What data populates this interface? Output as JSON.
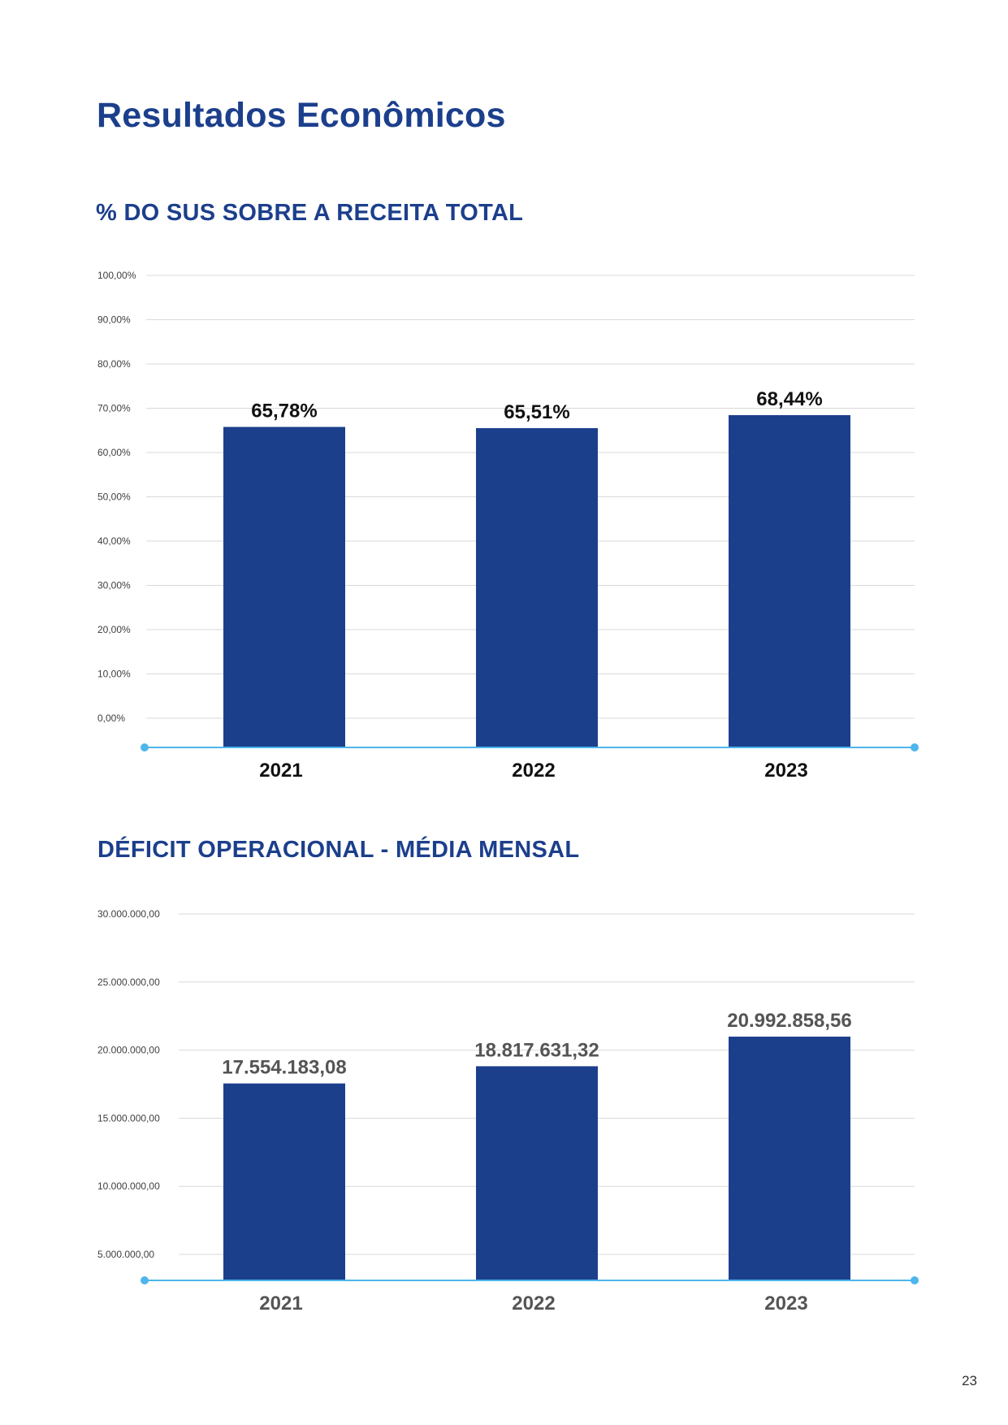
{
  "page_title": "Resultados Econômicos",
  "page_number": "23",
  "colors": {
    "bar": "#1c3f8c",
    "title": "#1c3f8c",
    "baseline": "#4db6ec",
    "grid": "#d9d9d9"
  },
  "chart_data": [
    {
      "type": "bar",
      "title": "% DO SUS SOBRE A RECEITA TOTAL",
      "categories": [
        "2021",
        "2022",
        "2023"
      ],
      "values": [
        65.78,
        65.51,
        68.44
      ],
      "data_labels": [
        "65,78%",
        "65,51%",
        "68,44%"
      ],
      "ylim": [
        0,
        100
      ],
      "yticks": [
        "0,00%",
        "10,00%",
        "20,00%",
        "30,00%",
        "40,00%",
        "50,00%",
        "60,00%",
        "70,00%",
        "80,00%",
        "90,00%",
        "100,00%"
      ],
      "grid": true,
      "legend": "none"
    },
    {
      "type": "bar",
      "title": "DÉFICIT OPERACIONAL - MÉDIA MENSAL",
      "categories": [
        "2021",
        "2022",
        "2023"
      ],
      "values": [
        17554183.08,
        18817631.32,
        20992858.56
      ],
      "data_labels": [
        "17.554.183,08",
        "18.817.631,32",
        "20.992.858,56"
      ],
      "ylim": [
        5000000,
        30000000
      ],
      "yticks": [
        "5.000.000,00",
        "10.000.000,00",
        "15.000.000,00",
        "20.000.000,00",
        "25.000.000,00",
        "30.000.000,00"
      ],
      "grid": true,
      "legend": "none"
    }
  ]
}
